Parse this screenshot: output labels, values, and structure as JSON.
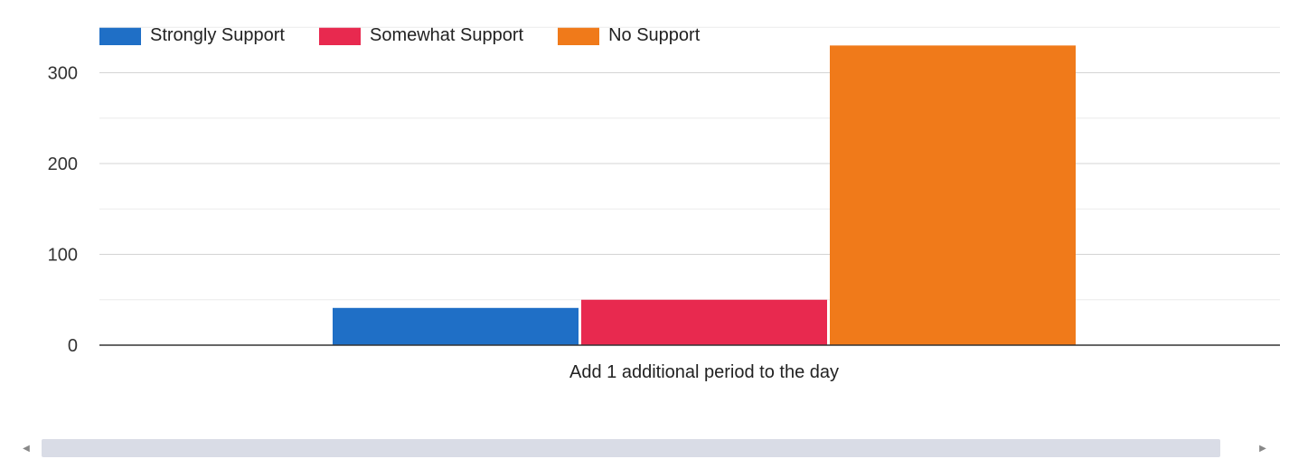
{
  "chart_data": {
    "type": "bar",
    "categories": [
      "Add 1 additional period to the day"
    ],
    "series": [
      {
        "name": "Strongly Support",
        "values": [
          41
        ],
        "color": "#1f6fc6"
      },
      {
        "name": "Somewhat Support",
        "values": [
          50
        ],
        "color": "#e8294f"
      },
      {
        "name": "No Support",
        "values": [
          330
        ],
        "color": "#f07a1a"
      }
    ],
    "ylim": [
      0,
      350
    ],
    "yticks": [
      "0",
      "100",
      "200",
      "300"
    ],
    "ytick_values": [
      0,
      100,
      200,
      300
    ],
    "minor_grid": [
      50,
      150,
      250,
      350
    ],
    "grid": true,
    "legend": "top-left",
    "title": "",
    "xlabel": "",
    "ylabel": ""
  },
  "scrollbar": {
    "left_icon": "scroll-left-arrow-icon",
    "right_icon": "scroll-right-arrow-icon"
  }
}
